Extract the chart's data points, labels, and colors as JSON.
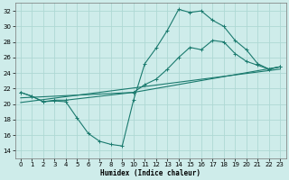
{
  "xlabel": "Humidex (Indice chaleur)",
  "bg_color": "#ceecea",
  "grid_color": "#aed8d4",
  "line_color": "#1a7a6e",
  "xlim": [
    -0.5,
    23.5
  ],
  "ylim": [
    13,
    33
  ],
  "xticks": [
    0,
    1,
    2,
    3,
    4,
    5,
    6,
    7,
    8,
    9,
    10,
    11,
    12,
    13,
    14,
    15,
    16,
    17,
    18,
    19,
    20,
    21,
    22,
    23
  ],
  "yticks": [
    14,
    16,
    18,
    20,
    22,
    24,
    26,
    28,
    30,
    32
  ],
  "curve1_x": [
    0,
    1,
    2,
    3,
    4,
    5,
    6,
    7,
    8,
    9,
    10,
    11,
    12,
    13,
    14,
    15,
    16,
    17,
    18,
    19,
    20,
    21,
    22,
    23
  ],
  "curve1_y": [
    21.5,
    21.0,
    20.3,
    20.4,
    20.3,
    18.2,
    16.2,
    15.2,
    14.8,
    14.6,
    20.5,
    25.2,
    27.2,
    29.5,
    32.2,
    31.8,
    32.0,
    30.8,
    30.0,
    28.2,
    27.0,
    25.2,
    24.5,
    24.8
  ],
  "curve2_x": [
    0,
    1,
    2,
    3,
    4,
    10,
    11,
    12,
    13,
    14,
    15,
    16,
    17,
    18,
    19,
    20,
    21,
    22,
    23
  ],
  "curve2_y": [
    21.5,
    21.0,
    20.3,
    20.5,
    20.5,
    21.5,
    22.5,
    23.2,
    24.5,
    26.0,
    27.3,
    27.0,
    28.2,
    28.0,
    26.5,
    25.5,
    25.0,
    24.5,
    24.8
  ],
  "curve3_x": [
    0,
    10,
    23
  ],
  "curve3_y": [
    20.8,
    21.5,
    24.8
  ],
  "curve4_x": [
    0,
    23
  ],
  "curve4_y": [
    20.2,
    24.5
  ]
}
